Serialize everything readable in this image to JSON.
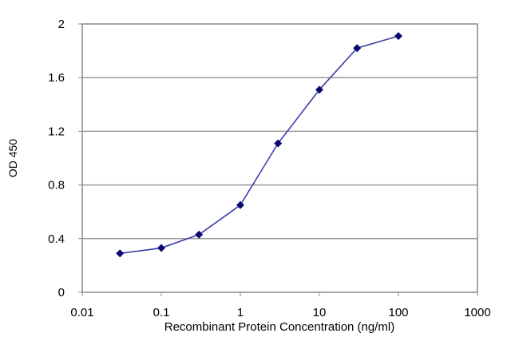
{
  "chart_data": {
    "type": "line",
    "title": "",
    "xlabel": "Recombinant Protein Concentration (ng/ml)",
    "ylabel": "OD 450",
    "xscale": "log",
    "xlim": [
      0.01,
      1000
    ],
    "ylim": [
      0,
      2
    ],
    "xticks": [
      "0.01",
      "0.1",
      "1",
      "10",
      "100",
      "1000"
    ],
    "yticks": [
      "0",
      "0.4",
      "0.8",
      "1.2",
      "1.6",
      "2"
    ],
    "grid": "horizontal",
    "line_color": "#3b3fa8",
    "marker_color": "#0a0a6e",
    "marker": "diamond",
    "series": [
      {
        "x": [
          0.03,
          0.1,
          0.3,
          1,
          3,
          10,
          30,
          100
        ],
        "y": [
          0.29,
          0.33,
          0.43,
          0.65,
          1.11,
          1.51,
          1.82,
          1.91
        ]
      }
    ]
  }
}
